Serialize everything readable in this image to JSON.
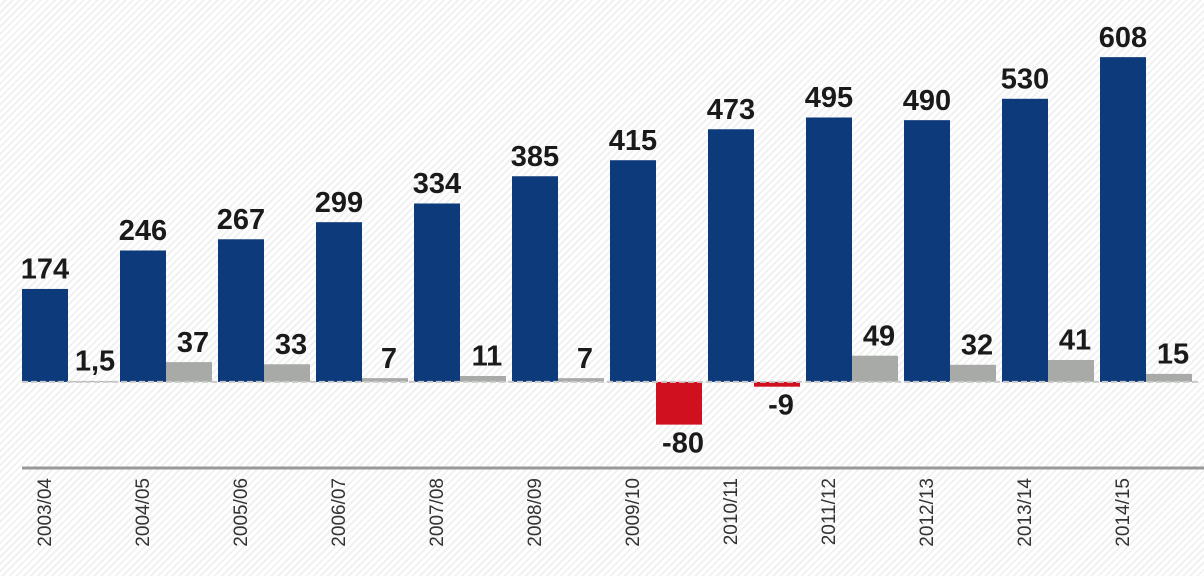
{
  "chart_data": {
    "type": "bar",
    "categories": [
      "2003/04",
      "2004/05",
      "2005/06",
      "2006/07",
      "2007/08",
      "2008/09",
      "2009/10",
      "2010/11",
      "2011/12",
      "2012/13",
      "2013/14",
      "2014/15"
    ],
    "series": [
      {
        "color": "#0d3a7a",
        "values": [
          174,
          246,
          267,
          299,
          334,
          385,
          415,
          473,
          495,
          490,
          530,
          608
        ]
      },
      {
        "color": "#a8aaa8",
        "negative_color": "#d0101e",
        "values": [
          1.5,
          37,
          33,
          7,
          11,
          7,
          -80,
          -9,
          49,
          32,
          41,
          15
        ],
        "value_labels": [
          "1,5",
          "37",
          "33",
          "7",
          "11",
          "7",
          "-80",
          "-9",
          "49",
          "32",
          "41",
          "15"
        ]
      }
    ],
    "ylim": [
      -150,
      700
    ]
  }
}
